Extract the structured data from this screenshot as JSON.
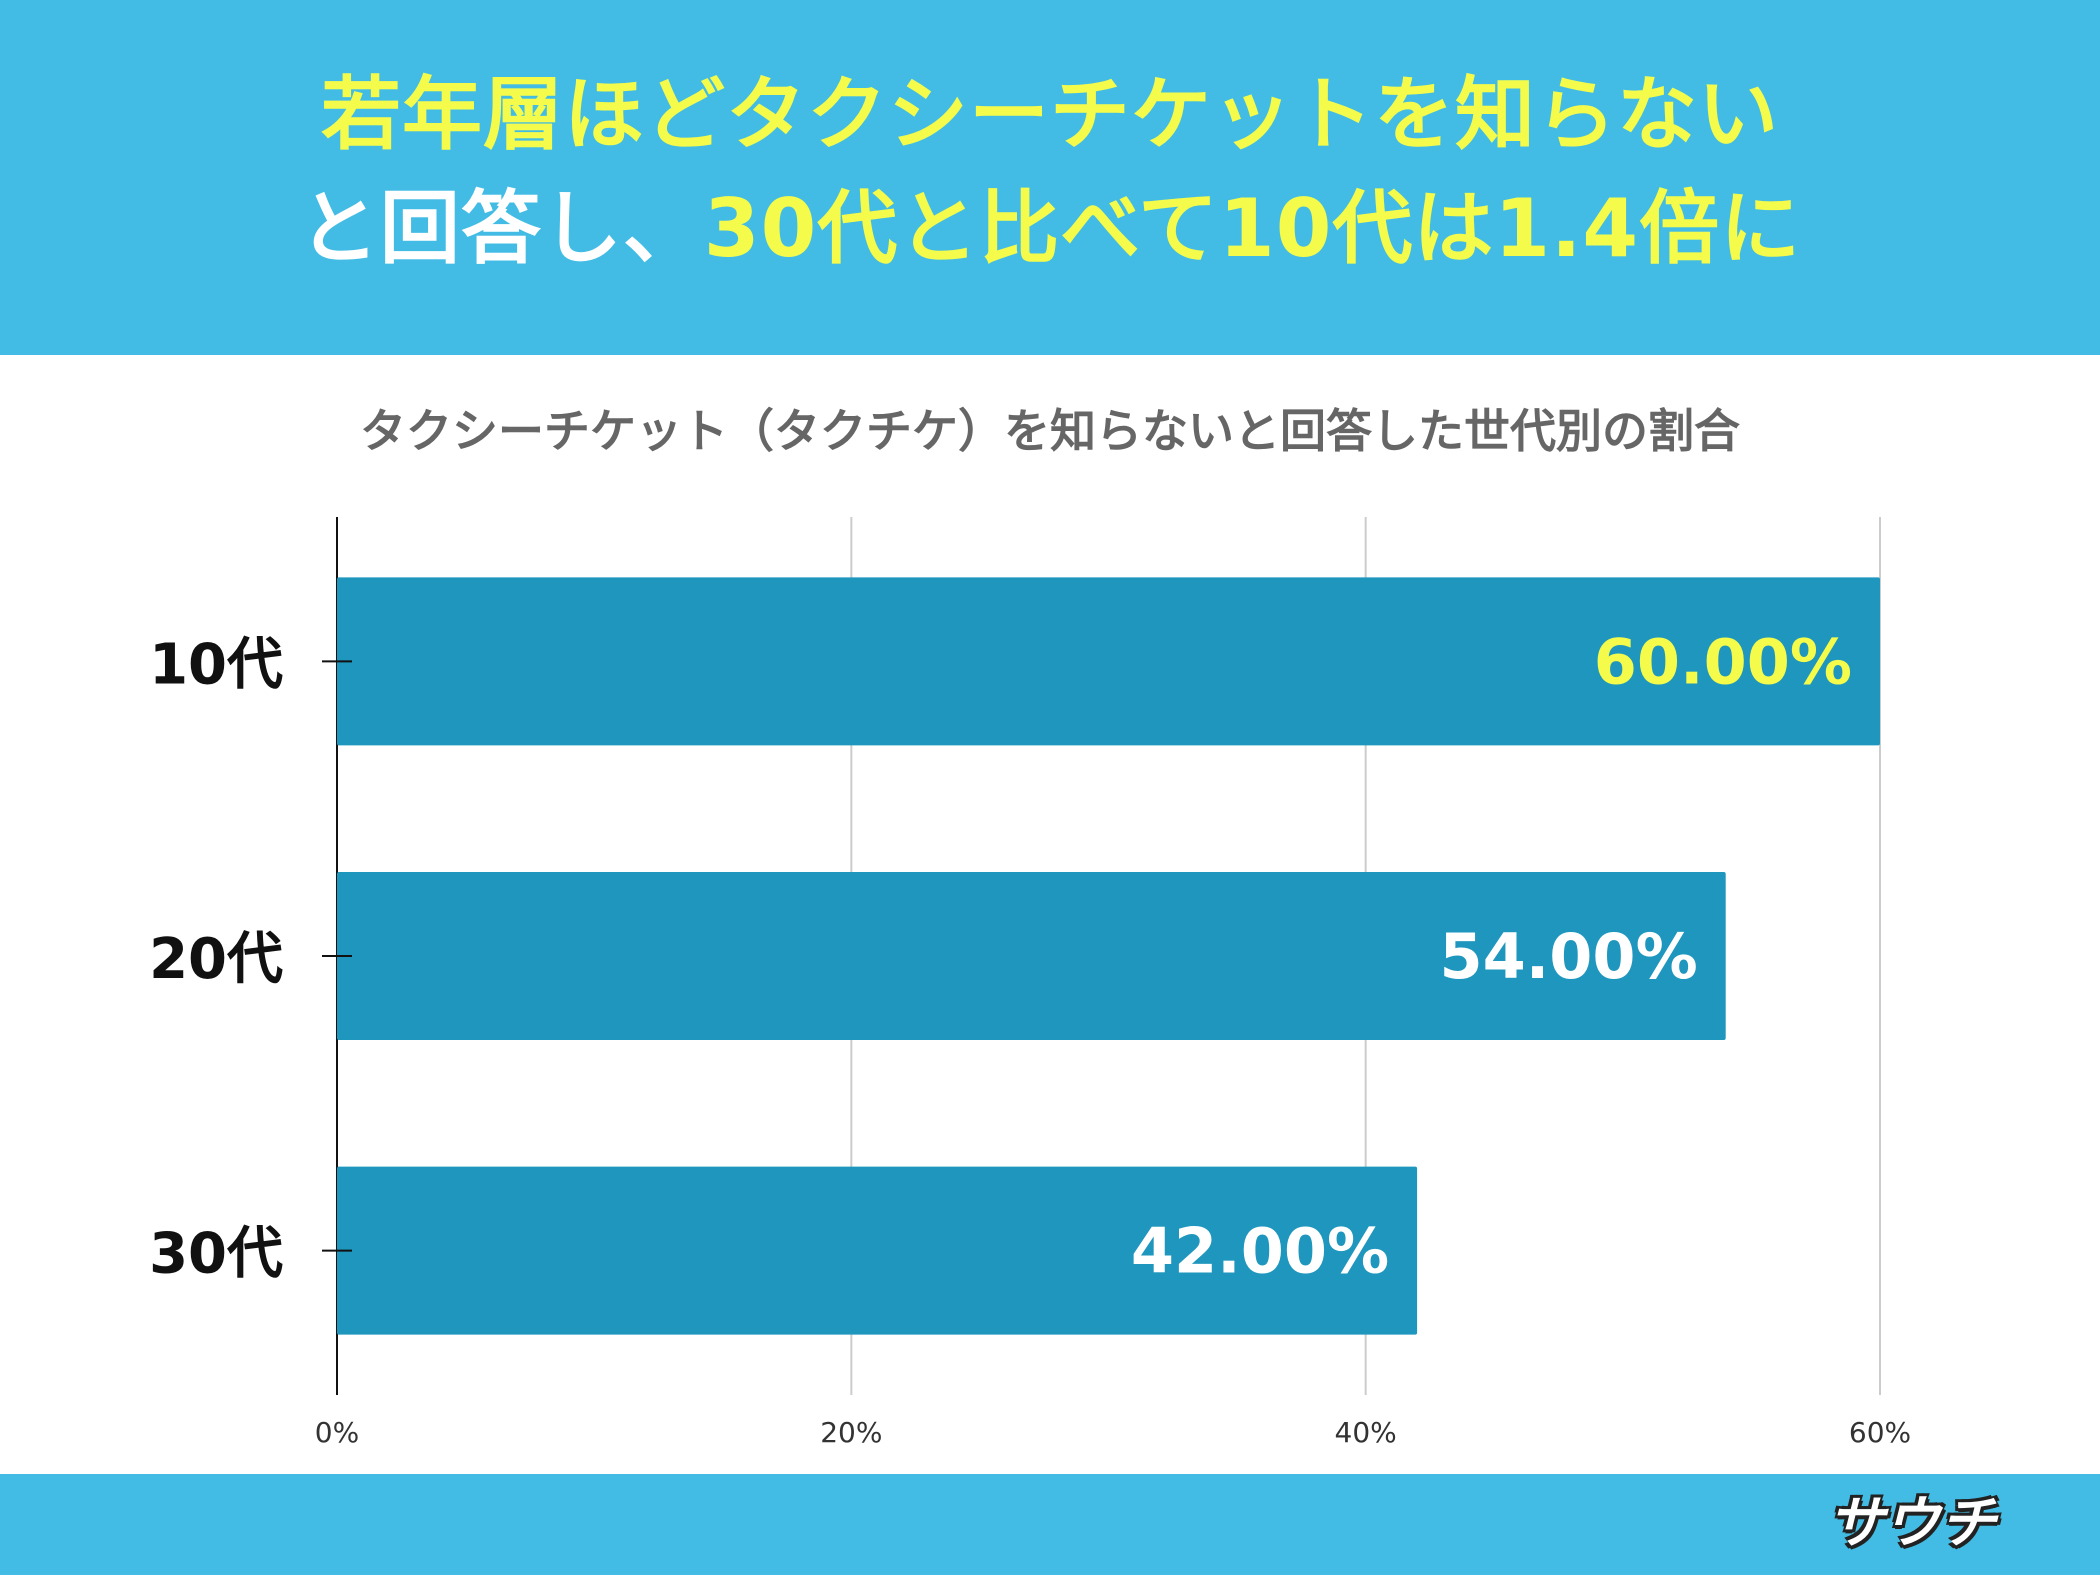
{
  "headline": {
    "line1": "若年層ほどタクシーチケットを知らない",
    "line2_white": "と回答し、",
    "line2_highlight": "30代と比べて10代は1.4倍に"
  },
  "logo": {
    "text": "サウチ"
  },
  "colors": {
    "header_bg": "#42bce4",
    "highlight": "#f4fb4a",
    "bar": "#1e96bd",
    "grid": "#cccccc"
  },
  "chart_data": {
    "type": "bar",
    "orientation": "horizontal",
    "title": "タクシーチケット（タクチケ）を知らないと回答した世代別の割合",
    "categories": [
      "10代",
      "20代",
      "30代"
    ],
    "values": [
      60.0,
      54.0,
      42.0
    ],
    "value_labels": [
      "60.00%",
      "54.00%",
      "42.00%"
    ],
    "highlight_index": 0,
    "xlim": [
      0,
      60
    ],
    "x_ticks": [
      0,
      20,
      40,
      60
    ],
    "x_tick_labels": [
      "0%",
      "20%",
      "40%",
      "60%"
    ],
    "grid": true,
    "legend": "none"
  }
}
